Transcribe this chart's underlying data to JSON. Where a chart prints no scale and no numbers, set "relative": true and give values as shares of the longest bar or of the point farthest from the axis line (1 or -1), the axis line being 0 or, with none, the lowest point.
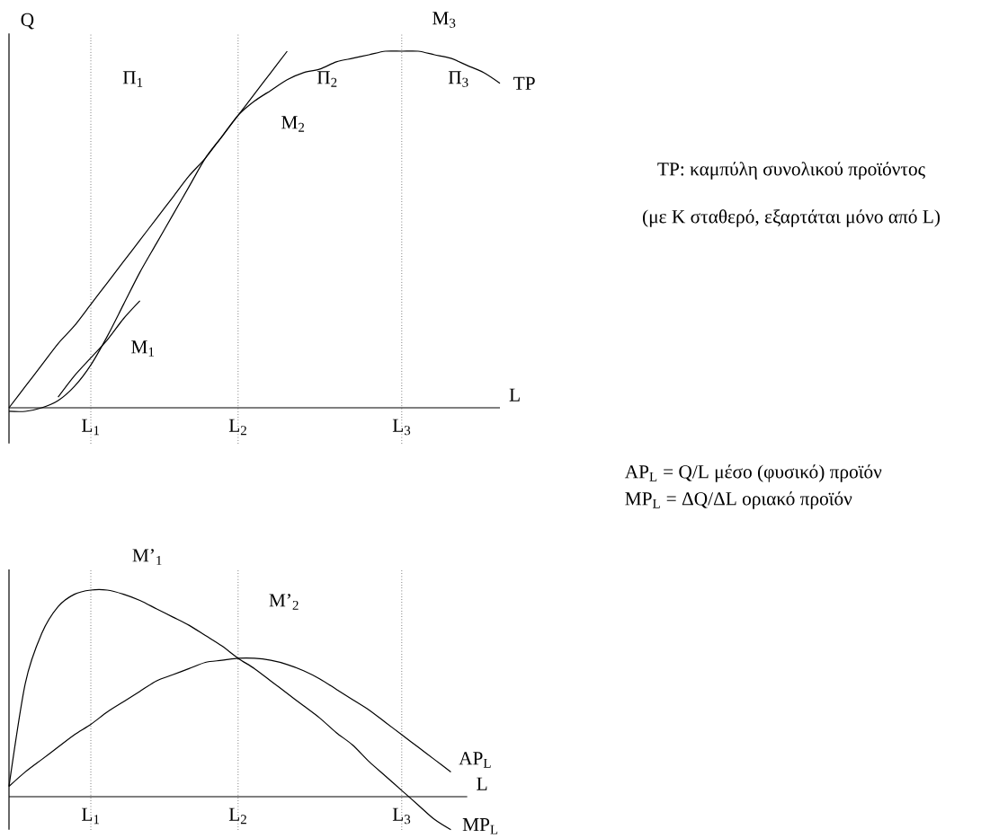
{
  "chart_data": [
    {
      "type": "line",
      "relative": true,
      "ylabel": "Q",
      "xlabel": "L",
      "categories": [
        null,
        null,
        null,
        null,
        null,
        "L$_{1}$",
        null,
        null,
        null,
        null,
        null,
        null,
        null,
        null,
        "L$_{2}$",
        null,
        null,
        null,
        null,
        null,
        null,
        null,
        null,
        null,
        "L$_{3}$",
        null,
        null,
        null,
        null,
        null,
        null
      ],
      "series": [
        {
          "name": "TP",
          "color": "#000000",
          "values": [
            -0.01,
            -0.01,
            0,
            0.02,
            0.06,
            0.12,
            0.2,
            0.29,
            0.38,
            0.46,
            0.54,
            0.62,
            0.7,
            0.76,
            0.82,
            0.86,
            0.89,
            0.92,
            0.94,
            0.95,
            0.97,
            0.98,
            0.99,
            1.0,
            1.0,
            1.0,
            0.99,
            0.98,
            0.96,
            0.94,
            0.91
          ]
        },
        {
          "color": "#000000",
          "values": [
            0,
            0.06,
            0.12,
            0.18,
            0.23,
            0.29,
            0.35,
            0.41,
            0.47,
            0.53,
            0.59,
            0.65,
            0.7,
            0.76,
            0.82,
            0.88,
            0.94,
            1.0,
            null,
            null,
            null,
            null,
            null,
            null,
            null,
            null,
            null,
            null,
            null,
            null,
            null
          ]
        },
        {
          "color": "#000000",
          "values": [
            null,
            null,
            null,
            0.03,
            0.09,
            0.14,
            0.19,
            0.25,
            0.3,
            null,
            null,
            null,
            null,
            null,
            null,
            null,
            null,
            null,
            null,
            null,
            null,
            null,
            null,
            null,
            null,
            null,
            null,
            null,
            null,
            null,
            null
          ]
        }
      ],
      "grid": "x",
      "annotations": [
        "Π$_{1}$",
        "Π$_{2}$",
        "Π$_{3}$",
        "M$_{1}$",
        "M$_{2}$",
        "M$_{3}$",
        "TP: καμπύλη συνολικού προϊόντος",
        "(με K σταθερό, εξαρτάται μόνο από L)"
      ]
    },
    {
      "type": "line",
      "relative": true,
      "xlabel": "L",
      "categories": [
        null,
        null,
        null,
        null,
        null,
        "L$_{1}$",
        null,
        null,
        null,
        null,
        null,
        null,
        null,
        null,
        "L$_{2}$",
        null,
        null,
        null,
        null,
        null,
        null,
        null,
        null,
        null,
        "L$_{3}$",
        null,
        null,
        null,
        null
      ],
      "series": [
        {
          "name": "AP$_{L}$",
          "color": "#000000",
          "values": [
            0.05,
            0.12,
            0.18,
            0.24,
            0.3,
            0.35,
            0.41,
            0.46,
            0.51,
            0.56,
            0.59,
            0.62,
            0.65,
            0.66,
            0.67,
            0.67,
            0.66,
            0.64,
            0.61,
            0.57,
            0.52,
            0.47,
            0.42,
            0.36,
            0.3,
            0.24,
            0.18,
            0.12,
            null
          ]
        },
        {
          "name": "MP$_{L}$",
          "color": "#000000",
          "values": [
            0.05,
            0.55,
            0.79,
            0.92,
            0.98,
            1.0,
            1.0,
            0.98,
            0.95,
            0.91,
            0.87,
            0.83,
            0.78,
            0.73,
            0.67,
            0.62,
            0.56,
            0.5,
            0.44,
            0.38,
            0.31,
            0.25,
            0.17,
            0.1,
            0.03,
            -0.04,
            -0.11,
            -0.16,
            null
          ]
        }
      ],
      "grid": "x",
      "annotations": [
        "M’$_{1}$",
        "M’$_{2}$",
        "AP$_{L}$ = Q/L μέσο (φυσικό) προϊόν",
        "MP$_{L}$ = ΔQ/ΔL οριακό προϊόν"
      ]
    }
  ]
}
